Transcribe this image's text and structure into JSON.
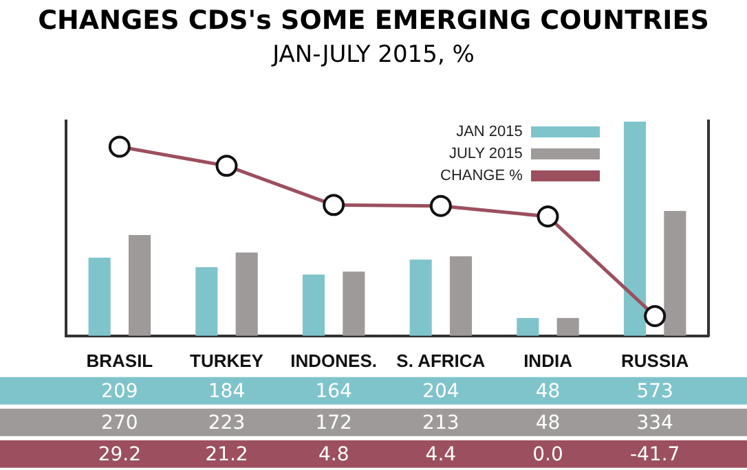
{
  "chart_data": {
    "type": "bar",
    "title": "CHANGES CDS's SOME EMERGING COUNTRIES",
    "subtitle": "JAN-JULY 2015, %",
    "categories": [
      "BRASIL",
      "TURKEY",
      "INDONES.",
      "S. AFRICA",
      "INDIA",
      "RUSSIA"
    ],
    "series": [
      {
        "name": "JAN 2015",
        "color": "#7fc4cb",
        "values": [
          209,
          184,
          164,
          204,
          48,
          573
        ],
        "value_labels": [
          "209",
          "184",
          "164",
          "204",
          "48",
          "573"
        ]
      },
      {
        "name": "JULY 2015",
        "color": "#9e9a9a",
        "values": [
          270,
          223,
          172,
          213,
          48,
          334
        ],
        "value_labels": [
          "270",
          "223",
          "172",
          "213",
          "48",
          "334"
        ]
      },
      {
        "name": "CHANGE %",
        "type": "line",
        "axis": "y2",
        "color": "#9c4f5e",
        "values": [
          29.2,
          21.2,
          4.8,
          4.4,
          0.0,
          -41.7
        ],
        "value_labels": [
          "29.2",
          "21.2",
          "4.8",
          "4.4",
          "0.0",
          "-41.7"
        ]
      }
    ],
    "ylim": [
      0,
      575
    ],
    "tick_labels": "x",
    "grid": false,
    "legend": "top right",
    "marker": "circle"
  }
}
